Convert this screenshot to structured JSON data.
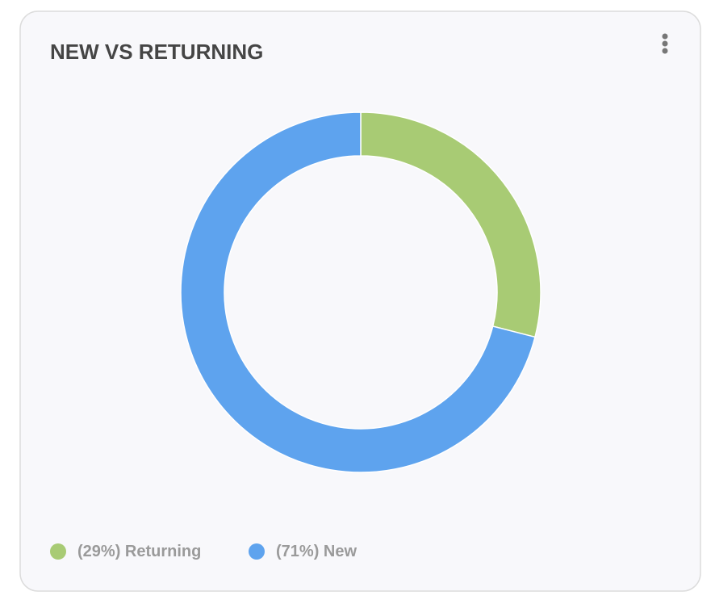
{
  "chart_data": {
    "type": "donut",
    "title": "NEW VS RETURNING",
    "categories": [
      "Returning",
      "New"
    ],
    "values": [
      29,
      71
    ],
    "value_labels": [
      "(29%)",
      "(71%)"
    ],
    "colors": [
      "#a8cb74",
      "#5ea3ee"
    ]
  }
}
